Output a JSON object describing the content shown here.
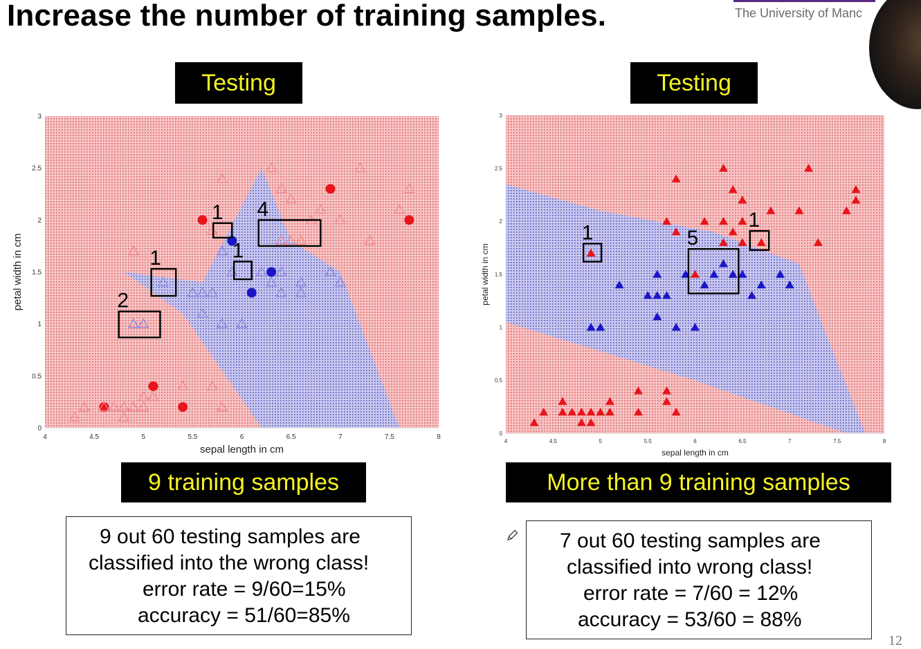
{
  "slide": {
    "title": "Increase the number of training samples.",
    "logo_text": "The University of Manc",
    "page_number": "12"
  },
  "panels": [
    {
      "header": "Testing",
      "caption": "9 training samples",
      "result_lines": [
        "9 out 60 testing samples are",
        "classified into the wrong class!",
        "error rate = 9/60=15%",
        "accuracy = 51/60=85%"
      ]
    },
    {
      "header": "Testing",
      "caption": "More than 9 training samples",
      "result_lines": [
        "7 out 60 testing samples are",
        "classified into wrong class!",
        "error rate = 7/60 = 12%",
        "accuracy = 53/60 = 88%"
      ]
    }
  ],
  "colors": {
    "region_red": "#f5c4c4",
    "region_blue": "#c9c8ec",
    "dot_red": "#e2585c",
    "dot_blue": "#4f4fc6",
    "marker_red": "#e8141b",
    "marker_blue": "#1a16c8",
    "marker_red_hollow": "#f08a8d",
    "marker_blue_hollow": "#8a88de",
    "label_bg": "#000000",
    "label_text": "#f6f322"
  },
  "chart_data": [
    {
      "type": "scatter",
      "title": "",
      "xlabel": "sepal length in cm",
      "ylabel": "petal width in cm",
      "xlim": [
        4,
        8
      ],
      "ylim": [
        0,
        3
      ],
      "xticks": [
        "4",
        "4.5",
        "5",
        "5.5",
        "6",
        "6.5",
        "7",
        "7.5",
        "8"
      ],
      "xtick_values": [
        4,
        4.5,
        5,
        5.5,
        6,
        6.5,
        7,
        7.5,
        8
      ],
      "yticks": [
        "0",
        "0.5",
        "1",
        "1.5",
        "2",
        "2.5",
        "3"
      ],
      "ytick_values": [
        0,
        0.5,
        1,
        1.5,
        2,
        2.5,
        3
      ],
      "blue_region": [
        [
          5.6,
          1.4
        ],
        [
          6.2,
          2.5
        ],
        [
          6.5,
          1.8
        ],
        [
          7.0,
          1.5
        ],
        [
          7.6,
          0
        ],
        [
          6.2,
          0
        ],
        [
          5.4,
          1.1
        ],
        [
          4.8,
          1.5
        ]
      ],
      "series": [
        {
          "class": "red",
          "marker": "circle",
          "filled": true,
          "points": [
            [
              4.6,
              0.2
            ],
            [
              5.1,
              0.4
            ],
            [
              5.4,
              0.2
            ],
            [
              5.6,
              2.0
            ],
            [
              6.9,
              2.3
            ],
            [
              7.7,
              2.0
            ]
          ]
        },
        {
          "class": "blue",
          "marker": "circle",
          "filled": true,
          "points": [
            [
              5.9,
              1.8
            ],
            [
              6.1,
              1.3
            ],
            [
              6.3,
              1.5
            ]
          ]
        },
        {
          "class": "red",
          "marker": "triangle",
          "filled": false,
          "points": [
            [
              4.3,
              0.1
            ],
            [
              4.4,
              0.2
            ],
            [
              4.6,
              0.2
            ],
            [
              4.7,
              0.2
            ],
            [
              4.8,
              0.1
            ],
            [
              4.8,
              0.2
            ],
            [
              4.9,
              0.2
            ],
            [
              5.0,
              0.2
            ],
            [
              5.0,
              0.3
            ],
            [
              5.1,
              0.3
            ],
            [
              5.4,
              0.4
            ],
            [
              5.7,
              0.4
            ],
            [
              5.8,
              0.2
            ],
            [
              4.9,
              1.7
            ],
            [
              5.8,
              2.4
            ],
            [
              6.3,
              2.5
            ],
            [
              6.4,
              2.3
            ],
            [
              6.5,
              2.2
            ],
            [
              6.7,
              2.0
            ],
            [
              7.2,
              2.5
            ],
            [
              7.7,
              2.3
            ],
            [
              7.6,
              2.1
            ],
            [
              7.3,
              1.8
            ],
            [
              6.8,
              2.1
            ],
            [
              7.0,
              2.0
            ],
            [
              5.7,
              1.9
            ],
            [
              6.4,
              1.8
            ],
            [
              6.5,
              1.8
            ],
            [
              6.6,
              1.8
            ]
          ]
        },
        {
          "class": "blue",
          "marker": "triangle",
          "filled": false,
          "points": [
            [
              4.9,
              1.0
            ],
            [
              5.0,
              1.0
            ],
            [
              5.2,
              1.4
            ],
            [
              5.5,
              1.3
            ],
            [
              5.6,
              1.3
            ],
            [
              5.7,
              1.3
            ],
            [
              5.8,
              1.0
            ],
            [
              6.0,
              1.0
            ],
            [
              5.6,
              1.1
            ],
            [
              6.3,
              1.4
            ],
            [
              6.4,
              1.3
            ],
            [
              6.6,
              1.4
            ],
            [
              6.9,
              1.5
            ],
            [
              7.0,
              1.4
            ],
            [
              5.9,
              1.5
            ],
            [
              6.2,
              1.5
            ],
            [
              6.4,
              1.5
            ],
            [
              6.6,
              1.3
            ],
            [
              5.8,
              1.7
            ]
          ]
        }
      ],
      "annotation_boxes": [
        {
          "label": "1",
          "x": [
            5.71,
            5.9
          ],
          "y": [
            1.83,
            1.97
          ]
        },
        {
          "label": "4",
          "x": [
            6.17,
            6.8
          ],
          "y": [
            1.75,
            2.0
          ]
        },
        {
          "label": "1",
          "x": [
            5.08,
            5.33
          ],
          "y": [
            1.27,
            1.53
          ]
        },
        {
          "label": "1",
          "x": [
            5.92,
            6.1
          ],
          "y": [
            1.43,
            1.6
          ]
        },
        {
          "label": "2",
          "x": [
            4.75,
            5.17
          ],
          "y": [
            0.87,
            1.12
          ]
        }
      ]
    },
    {
      "type": "scatter",
      "title": "",
      "xlabel": "sepal length in cm",
      "ylabel": "petal width in cm",
      "xlim": [
        4,
        8
      ],
      "ylim": [
        0,
        3
      ],
      "xticks": [
        "4",
        "4.5",
        "5",
        "5.5",
        "6",
        "6.5",
        "7",
        "7.5",
        "8"
      ],
      "xtick_values": [
        4,
        4.5,
        5,
        5.5,
        6,
        6.5,
        7,
        7.5,
        8
      ],
      "yticks": [
        "0",
        "0.5",
        "1",
        "1.5",
        "2",
        "2.5",
        "3"
      ],
      "ytick_values": [
        0,
        0.5,
        1,
        1.5,
        2,
        2.5,
        3
      ],
      "blue_region": [
        [
          4,
          2.35
        ],
        [
          5.0,
          2.1
        ],
        [
          6.2,
          1.9
        ],
        [
          7.1,
          1.6
        ],
        [
          7.4,
          0.9
        ],
        [
          7.8,
          0
        ],
        [
          7.6,
          0
        ],
        [
          6.0,
          0.5
        ],
        [
          4,
          1.05
        ]
      ],
      "series": [
        {
          "class": "red",
          "marker": "triangle",
          "filled": true,
          "points": [
            [
              4.3,
              0.1
            ],
            [
              4.4,
              0.2
            ],
            [
              4.6,
              0.3
            ],
            [
              4.6,
              0.2
            ],
            [
              4.7,
              0.2
            ],
            [
              4.8,
              0.2
            ],
            [
              4.8,
              0.1
            ],
            [
              4.9,
              0.2
            ],
            [
              4.9,
              0.1
            ],
            [
              5.0,
              0.2
            ],
            [
              5.1,
              0.2
            ],
            [
              5.1,
              0.3
            ],
            [
              5.4,
              0.4
            ],
            [
              5.4,
              0.2
            ],
            [
              5.7,
              0.4
            ],
            [
              5.7,
              0.3
            ],
            [
              5.8,
              0.2
            ],
            [
              4.9,
              1.7
            ],
            [
              5.8,
              2.4
            ],
            [
              5.7,
              2.0
            ],
            [
              5.8,
              1.9
            ],
            [
              6.3,
              2.5
            ],
            [
              6.4,
              2.3
            ],
            [
              6.5,
              2.2
            ],
            [
              6.5,
              2.0
            ],
            [
              6.4,
              1.9
            ],
            [
              6.3,
              1.8
            ],
            [
              6.5,
              1.8
            ],
            [
              6.7,
              1.8
            ],
            [
              6.8,
              2.1
            ],
            [
              7.1,
              2.1
            ],
            [
              7.2,
              2.5
            ],
            [
              7.3,
              1.8
            ],
            [
              7.6,
              2.1
            ],
            [
              7.7,
              2.3
            ],
            [
              7.7,
              2.2
            ],
            [
              6.0,
              1.5
            ],
            [
              6.3,
              2.0
            ],
            [
              6.1,
              2.0
            ]
          ]
        },
        {
          "class": "blue",
          "marker": "triangle",
          "filled": true,
          "points": [
            [
              4.9,
              1.0
            ],
            [
              5.0,
              1.0
            ],
            [
              5.2,
              1.4
            ],
            [
              5.5,
              1.3
            ],
            [
              5.6,
              1.3
            ],
            [
              5.7,
              1.3
            ],
            [
              5.6,
              1.5
            ],
            [
              5.6,
              1.1
            ],
            [
              5.8,
              1.0
            ],
            [
              6.0,
              1.0
            ],
            [
              5.9,
              1.5
            ],
            [
              6.1,
              1.4
            ],
            [
              6.2,
              1.5
            ],
            [
              6.3,
              1.6
            ],
            [
              6.4,
              1.5
            ],
            [
              6.5,
              1.5
            ],
            [
              6.6,
              1.3
            ],
            [
              6.7,
              1.4
            ],
            [
              6.9,
              1.5
            ],
            [
              7.0,
              1.4
            ]
          ]
        }
      ],
      "annotation_boxes": [
        {
          "label": "1",
          "x": [
            4.82,
            5.01
          ],
          "y": [
            1.62,
            1.79
          ]
        },
        {
          "label": "5",
          "x": [
            5.93,
            6.46
          ],
          "y": [
            1.32,
            1.74
          ]
        },
        {
          "label": "1",
          "x": [
            6.58,
            6.78
          ],
          "y": [
            1.73,
            1.91
          ]
        }
      ]
    }
  ]
}
